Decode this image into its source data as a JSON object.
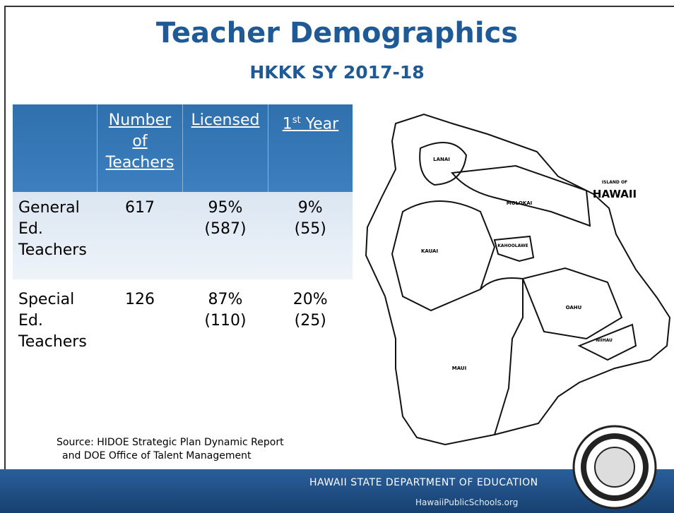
{
  "header": {
    "title": "Teacher Demographics",
    "subtitle": "HKKK SY 2017-18"
  },
  "table": {
    "columns": [
      [
        "Number",
        "of",
        "Teachers"
      ],
      [
        "Licensed"
      ],
      {
        "main": "1",
        "sup": "st",
        "rest": " Year"
      }
    ],
    "rows": [
      {
        "label": [
          "General",
          "Ed.",
          "Teachers"
        ],
        "cells": [
          [
            "617"
          ],
          [
            "95%",
            "(587)"
          ],
          [
            "9%",
            "(55)"
          ]
        ]
      },
      {
        "label": [
          "Special",
          "Ed.",
          "Teachers"
        ],
        "cells": [
          [
            "126"
          ],
          [
            "87%",
            "(110)"
          ],
          [
            "20%",
            "(25)"
          ]
        ]
      }
    ]
  },
  "source": [
    "Source: HIDOE Strategic Plan Dynamic Report",
    "and DOE Office of Talent Management"
  ],
  "map": {
    "caption": [
      "ISLAND OF",
      "HAWAII"
    ],
    "regions": [
      "LANAI",
      "MOLOKAI",
      "KAUAI",
      "KAHOOLAWE",
      "OAHU",
      "NIIHAU",
      "MAUI"
    ]
  },
  "footer": {
    "org": "HAWAII STATE DEPARTMENT OF EDUCATION",
    "url": "HawaiiPublicSchools.org"
  }
}
